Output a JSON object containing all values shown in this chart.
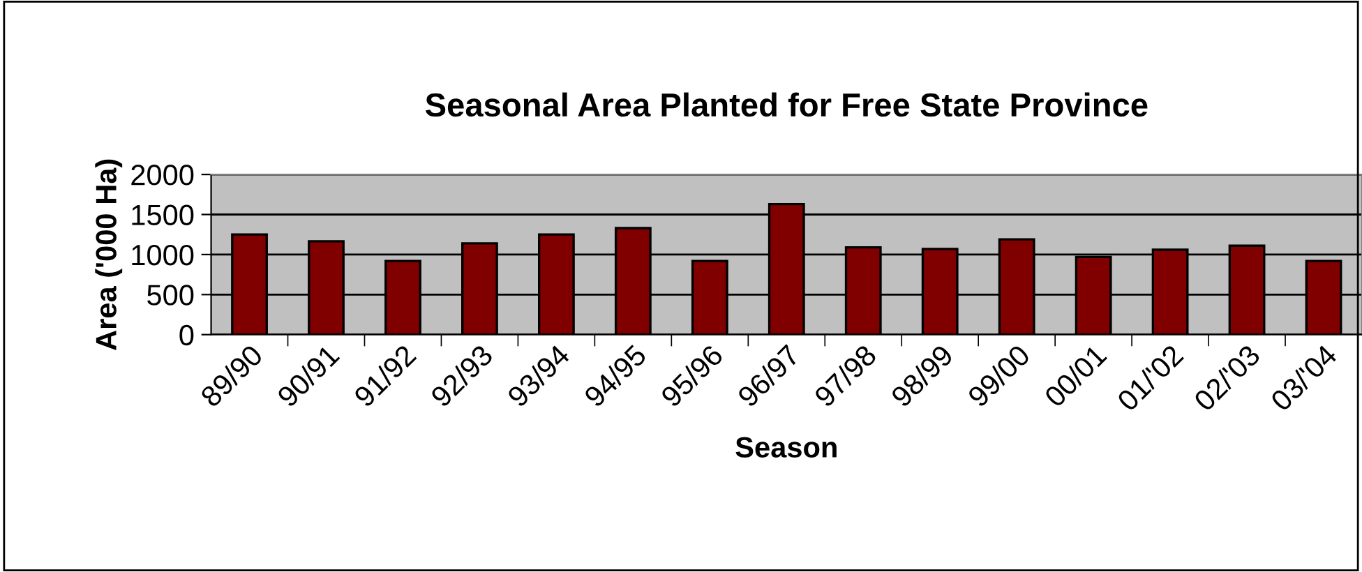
{
  "chart_data": {
    "type": "bar",
    "title": "Seasonal Area Planted for Free State Province",
    "xlabel": "Season",
    "ylabel": "Area ('000 Ha)",
    "categories": [
      "89/90",
      "90/91",
      "91/92",
      "92/93",
      "93/94",
      "94/95",
      "95/96",
      "96/97",
      "97/98",
      "98/99",
      "99/00",
      "00/01",
      "01/'02",
      "02/'03",
      "03/'04"
    ],
    "values": [
      1250,
      1165,
      920,
      1140,
      1250,
      1330,
      920,
      1630,
      1090,
      1070,
      1190,
      970,
      1060,
      1110,
      920
    ],
    "color": "#800000",
    "ylim": [
      0,
      2000
    ],
    "yticks": [
      0,
      500,
      1000,
      1500,
      2000
    ],
    "grid": "y",
    "legend": false
  }
}
